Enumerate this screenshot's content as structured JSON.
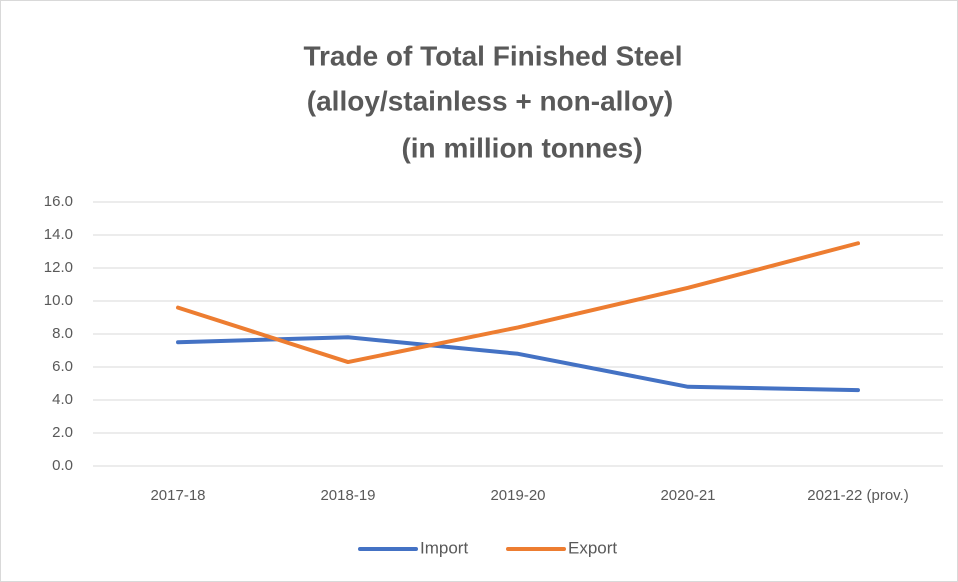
{
  "chart_data": {
    "type": "line",
    "title": [
      "Trade of Total Finished Steel",
      "(alloy/stainless + non-alloy)",
      "(in million  tonnes)"
    ],
    "categories": [
      "2017-18",
      "2018-19",
      "2019-20",
      "2020-21",
      "2021-22 (prov.)"
    ],
    "series": [
      {
        "name": "Import",
        "color": "#4472c4",
        "values": [
          7.5,
          7.8,
          6.8,
          4.8,
          4.6
        ]
      },
      {
        "name": "Export",
        "color": "#ed7d31",
        "values": [
          9.6,
          6.3,
          8.4,
          10.8,
          13.5
        ]
      }
    ],
    "ylim": [
      0,
      16
    ],
    "yticks": [
      {
        "value": 0,
        "label": "0.0"
      },
      {
        "value": 2,
        "label": "2.0"
      },
      {
        "value": 4,
        "label": "4.0"
      },
      {
        "value": 6,
        "label": "6.0"
      },
      {
        "value": 8,
        "label": "8.0"
      },
      {
        "value": 10,
        "label": "10.0"
      },
      {
        "value": 12,
        "label": "12.0"
      },
      {
        "value": 14,
        "label": "14.0"
      },
      {
        "value": 16,
        "label": "16.0"
      }
    ],
    "grid": true,
    "legend": "bottom"
  }
}
